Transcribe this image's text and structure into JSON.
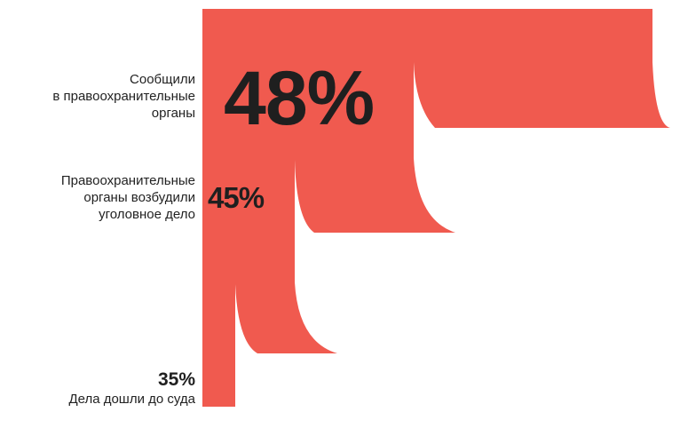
{
  "colors": {
    "bar": "#F05A4F",
    "text": "#1f1f1f"
  },
  "chart_data": {
    "type": "funnel",
    "stages": [
      {
        "id": "reported",
        "value": 48,
        "display": "48%",
        "label": "Сообщили в правоохранительные органы"
      },
      {
        "id": "case_opened",
        "value": 45,
        "display": "45%",
        "label": "Правоохранительные органы возбудили уголовное дело"
      },
      {
        "id": "to_court",
        "value": 35,
        "display": "35%",
        "label": "Дела дошли до суда"
      }
    ]
  },
  "labels": {
    "stage1_line1": "Сообщили",
    "stage1_line2": "в правоохранительные",
    "stage1_line3": "органы",
    "stage2_line1": "Правоохранительные",
    "stage2_line2": "органы возбудили",
    "stage2_line3": "уголовное дело",
    "stage3_caption": "Дела дошли до суда"
  }
}
